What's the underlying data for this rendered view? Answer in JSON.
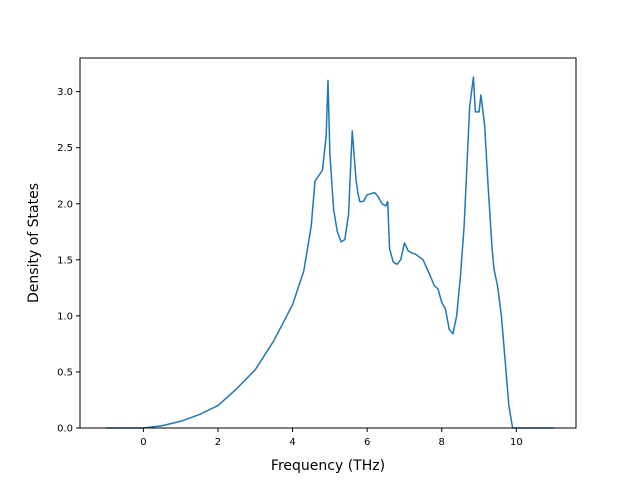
{
  "chart_data": {
    "type": "line",
    "title": "",
    "xlabel": "Frequency (THz)",
    "ylabel": "Density of States",
    "xlim": [
      -1.7,
      11.6
    ],
    "ylim": [
      0.0,
      3.3
    ],
    "xticks": [
      0,
      2,
      4,
      6,
      8,
      10
    ],
    "yticks": [
      0.0,
      0.5,
      1.0,
      1.5,
      2.0,
      2.5,
      3.0
    ],
    "xtick_labels": [
      "0",
      "2",
      "4",
      "6",
      "8",
      "10"
    ],
    "ytick_labels": [
      "0.0",
      "0.5",
      "1.0",
      "1.5",
      "2.0",
      "2.5",
      "3.0"
    ],
    "grid": false,
    "legend": "none",
    "series": [
      {
        "color": "#1f77b4",
        "x": [
          -1.0,
          0.0,
          0.5,
          1.0,
          1.5,
          2.0,
          2.5,
          3.0,
          3.5,
          4.0,
          4.3,
          4.5,
          4.6,
          4.8,
          4.9,
          4.95,
          5.0,
          5.1,
          5.2,
          5.3,
          5.4,
          5.5,
          5.6,
          5.7,
          5.75,
          5.8,
          5.9,
          6.0,
          6.2,
          6.3,
          6.4,
          6.5,
          6.55,
          6.6,
          6.7,
          6.8,
          6.9,
          7.0,
          7.1,
          7.2,
          7.3,
          7.5,
          7.7,
          7.8,
          7.9,
          8.0,
          8.1,
          8.2,
          8.3,
          8.4,
          8.5,
          8.6,
          8.75,
          8.85,
          8.9,
          9.0,
          9.05,
          9.15,
          9.25,
          9.35,
          9.4,
          9.5,
          9.6,
          9.7,
          9.8,
          9.9,
          9.95,
          10.0,
          11.0
        ],
        "y": [
          0.0,
          0.0,
          0.02,
          0.06,
          0.12,
          0.2,
          0.35,
          0.52,
          0.78,
          1.1,
          1.4,
          1.8,
          2.2,
          2.3,
          2.6,
          3.1,
          2.45,
          1.95,
          1.75,
          1.66,
          1.68,
          1.9,
          2.65,
          2.22,
          2.1,
          2.02,
          2.02,
          2.08,
          2.1,
          2.06,
          2.0,
          1.98,
          2.02,
          1.6,
          1.48,
          1.46,
          1.5,
          1.65,
          1.58,
          1.56,
          1.55,
          1.5,
          1.35,
          1.27,
          1.24,
          1.12,
          1.06,
          0.88,
          0.84,
          1.0,
          1.35,
          1.8,
          2.87,
          3.13,
          2.82,
          2.82,
          2.97,
          2.7,
          2.12,
          1.6,
          1.42,
          1.26,
          1.0,
          0.6,
          0.2,
          0.0,
          0.0,
          0.0,
          0.0
        ]
      }
    ]
  }
}
